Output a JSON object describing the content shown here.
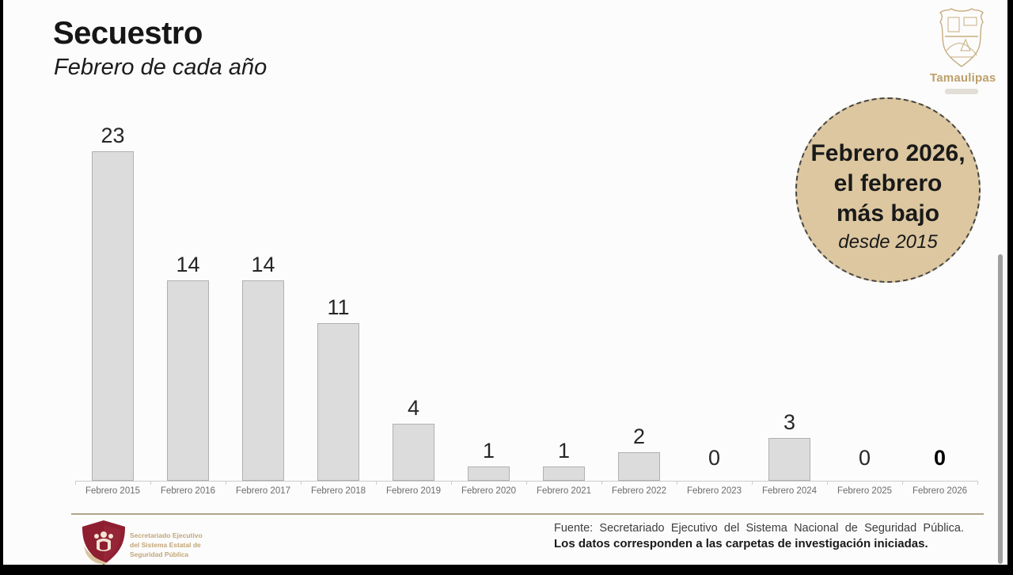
{
  "header": {
    "title": "Secuestro",
    "subtitle": "Febrero de cada año"
  },
  "logo": {
    "text": "Tamaulipas"
  },
  "badge": {
    "line1": "Febrero 2026,",
    "line2": "el febrero",
    "line3": "más bajo",
    "line4": "desde 2015"
  },
  "chart_data": {
    "type": "bar",
    "title": "Secuestro",
    "subtitle": "Febrero de cada año",
    "categories": [
      "Febrero 2015",
      "Febrero 2016",
      "Febrero 2017",
      "Febrero 2018",
      "Febrero 2019",
      "Febrero 2020",
      "Febrero 2021",
      "Febrero 2022",
      "Febrero 2023",
      "Febrero 2024",
      "Febrero 2025",
      "Febrero 2026"
    ],
    "values": [
      23,
      14,
      14,
      11,
      4,
      1,
      1,
      2,
      0,
      3,
      0,
      0
    ],
    "highlight_category": "Febrero 2026",
    "ylim": [
      0,
      25
    ],
    "grid": false,
    "legend": false,
    "bar_color": "#dcdcdc",
    "bar_border_color": "#b0b0b0",
    "annotation": "Febrero 2026, el febrero más bajo desde 2015"
  },
  "footer": {
    "org_line1": "Secretariado Ejecutivo",
    "org_line2": "del Sistema Estatal de",
    "org_line3": "Seguridad Pública",
    "source_line1": "Fuente: Secretariado Ejecutivo del Sistema Nacional de Seguridad Pública.",
    "source_line2": "Los datos corresponden a las carpetas de investigación iniciadas."
  },
  "colors": {
    "badge_fill": "#dcc7a0",
    "badge_border": "#454545",
    "bar_fill": "#dcdcdc",
    "bar_border": "#b0b0b0",
    "crest_tan": "#c8ad80",
    "crest_text": "#bd9f6b",
    "shield_maroon": "#8e1f31",
    "footer_line": "#b2a48b"
  }
}
